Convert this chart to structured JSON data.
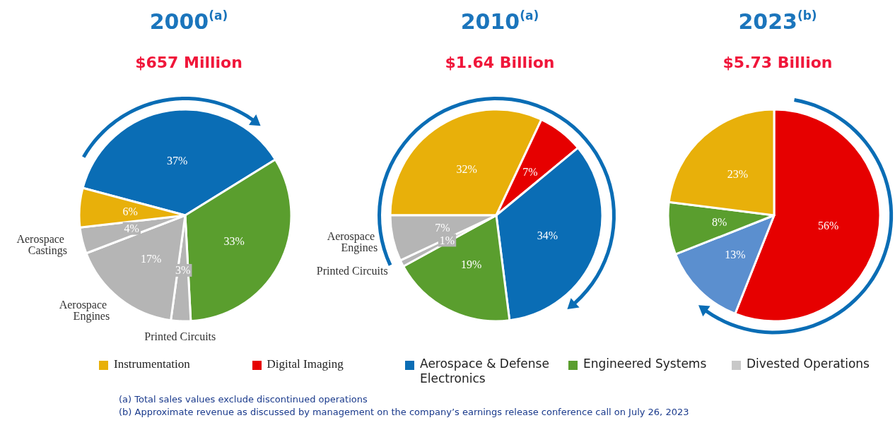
{
  "chart_data": [
    {
      "type": "pie",
      "title": "2000$^{(a)}$",
      "subtitle": "$657 Million",
      "categories": [
        null,
        null,
        "Printed Circuits",
        "Aerospace Engines",
        "Aerospace Castings",
        null
      ],
      "values": [
        37,
        33,
        3,
        17,
        4,
        6
      ],
      "colors": [
        "#0a6db5",
        "#5a9e2e",
        "#b5b5b5",
        "#b5b5b5",
        "#b5b5b5",
        "#e8b00a"
      ],
      "value_labels": [
        "37%",
        "33%",
        "3%",
        "17%",
        "4%",
        "6%"
      ]
    },
    {
      "type": "pie",
      "title": "2010$^{(a)}$",
      "subtitle": "$1.64 Billion",
      "categories": [
        null,
        null,
        null,
        null,
        "Printed Circuits",
        "Aerospace Engines"
      ],
      "values": [
        32,
        7,
        34,
        19,
        1,
        7
      ],
      "colors": [
        "#e8b00a",
        "#e60000",
        "#0a6db5",
        "#5a9e2e",
        "#b5b5b5",
        "#b5b5b5"
      ],
      "value_labels": [
        "32%",
        "7%",
        "34%",
        "19%",
        "1%",
        "7%"
      ]
    },
    {
      "type": "pie",
      "title": "2023$^{(b)}$",
      "subtitle": "$5.73 Billion",
      "categories": [
        null,
        null,
        null,
        null
      ],
      "values": [
        56,
        13,
        8,
        23
      ],
      "colors": [
        "#e60000",
        "#5b8fcf",
        "#5a9e2e",
        "#e8b00a"
      ],
      "value_labels": [
        "56%",
        "13%",
        "8%",
        "23%"
      ]
    },
    {
      "type": "other",
      "categories": [
        "Instrumentation",
        "Digital Imaging",
        "Aerospace & Defense Electronics",
        "Engineered Systems",
        "Divested Operations"
      ],
      "colors": [
        "#e8b00a",
        "#e60000",
        "#0a6db5",
        "#5a9e2e",
        "#c8c8c8"
      ],
      "annotations": [
        "(a)  Total sales values exclude discontinued operations",
        "(b)  Approximate revenue as discussed by management on the company’s earnings release conference call on July 26, 2023"
      ]
    }
  ]
}
